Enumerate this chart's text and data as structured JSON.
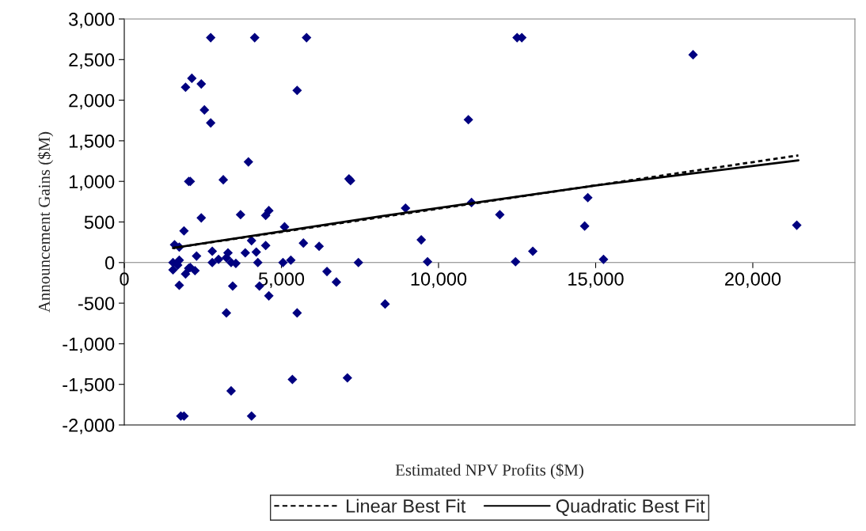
{
  "chart_data": {
    "type": "scatter",
    "xlabel": "Estimated NPV Profits ($M)",
    "ylabel": "Announcement Gains ($M)",
    "xlim": [
      0,
      23250
    ],
    "ylim": [
      -2000,
      3000
    ],
    "xticks": [
      0,
      {
        "value": 5000,
        "label": "5,000"
      },
      {
        "value": 10000,
        "label": "10,000"
      },
      {
        "value": 15000,
        "label": "15,000"
      },
      {
        "value": 20000,
        "label": "20,000"
      }
    ],
    "yticks": [
      {
        "value": -2000,
        "label": "-2,000"
      },
      {
        "value": -1500,
        "label": "-1,500"
      },
      {
        "value": -1000,
        "label": "-1,000"
      },
      {
        "value": -500,
        "label": "-500"
      },
      0,
      500,
      {
        "value": 1000,
        "label": "1,000"
      },
      {
        "value": 1500,
        "label": "1,500"
      },
      {
        "value": 2000,
        "label": "2,000"
      },
      {
        "value": 2500,
        "label": "2,500"
      },
      {
        "value": 3000,
        "label": "3,000"
      }
    ],
    "grid": false,
    "legend": "bottom",
    "series": [
      {
        "color": "#000080",
        "marker": "diamond",
        "x": [
          2750,
          4150,
          5800,
          2150,
          1950,
          2450,
          5500,
          2550,
          2750,
          3950,
          2050,
          2100,
          3150,
          7150,
          7200,
          1900,
          2450,
          3700,
          4500,
          4600,
          5100,
          1600,
          1750,
          4050,
          5700,
          6200,
          2800,
          2300,
          3300,
          3850,
          4200,
          4500,
          1550,
          1750,
          2800,
          3000,
          3250,
          3400,
          3550,
          4250,
          5050,
          5300,
          7450,
          1550,
          1700,
          1950,
          2050,
          2100,
          2250,
          1750,
          3450,
          4300,
          4600,
          3250,
          5500,
          6450,
          6750,
          8300,
          5350,
          7100,
          3400,
          1800,
          1900,
          4050,
          12500,
          12650,
          18100,
          10950,
          8950,
          11050,
          11950,
          14750,
          14650,
          21400,
          9450,
          13000,
          9650,
          12450,
          15250
        ],
        "values": [
          2770,
          2770,
          2770,
          2270,
          2160,
          2200,
          2120,
          1880,
          1720,
          1240,
          1000,
          1000,
          1020,
          1030,
          1010,
          390,
          550,
          590,
          580,
          640,
          440,
          220,
          190,
          270,
          240,
          200,
          140,
          80,
          120,
          120,
          130,
          210,
          0,
          30,
          0,
          40,
          60,
          0,
          -10,
          0,
          0,
          30,
          0,
          -90,
          -30,
          -140,
          -70,
          -60,
          -100,
          -280,
          -290,
          -290,
          -410,
          -620,
          -620,
          -110,
          -240,
          -510,
          -1440,
          -1420,
          -1580,
          -1890,
          -1890,
          -1890,
          2770,
          2770,
          2560,
          1760,
          670,
          740,
          590,
          800,
          450,
          460,
          280,
          140,
          10,
          10,
          40
        ]
      },
      {
        "type": "line",
        "name": "Linear Best Fit",
        "color": "#000000",
        "line_style": "dashed",
        "x": [
          1550,
          21450
        ],
        "values": [
          180,
          1320
        ]
      },
      {
        "type": "line",
        "name": "Quadratic Best Fit",
        "color": "#000000",
        "line_style": "solid",
        "x": [
          1550,
          8150,
          15000,
          21450
        ],
        "values": [
          180,
          570,
          950,
          1260
        ]
      }
    ]
  }
}
